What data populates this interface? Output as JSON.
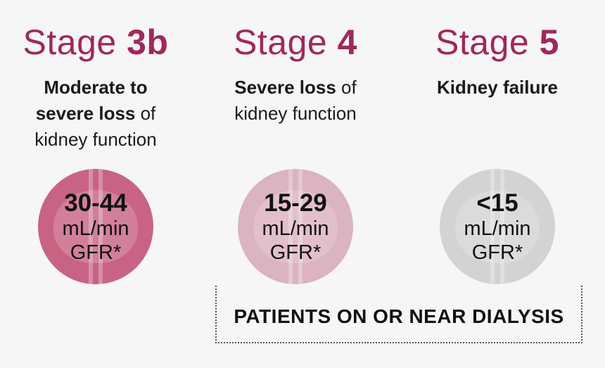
{
  "stages": [
    {
      "title_prefix": "Stage",
      "title_number": "3b",
      "desc_lines": [
        [
          {
            "text": "Moderate to",
            "bold": true
          }
        ],
        [
          {
            "text": "severe loss",
            "bold": true
          },
          {
            "text": " of",
            "bold": false
          }
        ],
        [
          {
            "text": "kidney function",
            "bold": false
          }
        ]
      ],
      "gfr_value": "30-44",
      "gfr_unit": "mL/min",
      "gfr_label": "GFR*",
      "circle_color": "#c96384"
    },
    {
      "title_prefix": "Stage",
      "title_number": "4",
      "desc_lines": [
        [
          {
            "text": "Severe loss",
            "bold": true
          },
          {
            "text": " of",
            "bold": false
          }
        ],
        [
          {
            "text": "kidney function",
            "bold": false
          }
        ]
      ],
      "gfr_value": "15-29",
      "gfr_unit": "mL/min",
      "gfr_label": "GFR*",
      "circle_color": "#dcb3c0"
    },
    {
      "title_prefix": "Stage",
      "title_number": "5",
      "desc_lines": [
        [
          {
            "text": "Kidney failure",
            "bold": true
          }
        ]
      ],
      "gfr_value": "<15",
      "gfr_unit": "mL/min",
      "gfr_label": "GFR*",
      "circle_color": "#d3d3d3"
    }
  ],
  "dialysis_label": "PATIENTS ON OR NEAR DIALYSIS",
  "colors": {
    "title": "#a0285a",
    "text": "#1a1a1a",
    "background": "#f6f6f6"
  }
}
